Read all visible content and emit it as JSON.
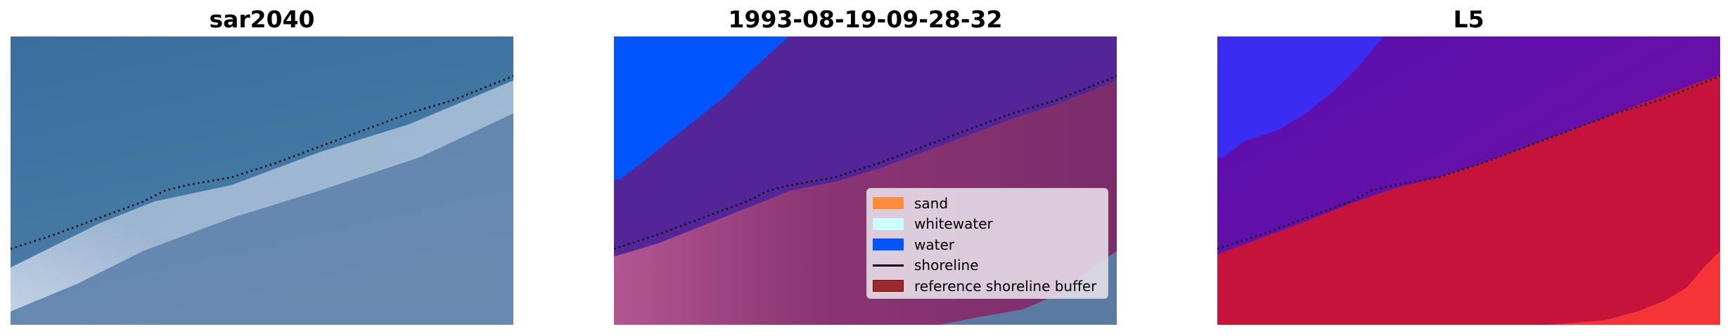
{
  "chart_data": [
    {
      "type": "heatmap",
      "title": "sar2040",
      "content": "RGB satellite image with detected shoreline (dotted black)",
      "axes": "off"
    },
    {
      "type": "heatmap",
      "title": "1993-08-19-09-28-32",
      "content": "classified image overlay",
      "axes": "off",
      "legend": {
        "placement": "lower-right",
        "entries": [
          {
            "label": "sand",
            "color": "#ff8c3c",
            "kind": "patch"
          },
          {
            "label": "whitewater",
            "color": "#ccffff",
            "kind": "patch"
          },
          {
            "label": "water",
            "color": "#0055ff",
            "kind": "patch"
          },
          {
            "label": "shoreline",
            "color": "#000000",
            "kind": "line"
          },
          {
            "label": "reference shoreline buffer",
            "color": "#9b2a2f",
            "kind": "patch"
          }
        ]
      }
    },
    {
      "type": "heatmap",
      "title": "L5",
      "content": "classifier probability image",
      "axes": "off"
    }
  ]
}
